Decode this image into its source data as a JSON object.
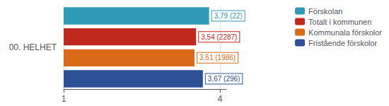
{
  "chart_data": {
    "type": "bar",
    "orientation": "horizontal",
    "ylabel": "00. HELHET",
    "categories": [
      null
    ],
    "series": [
      {
        "name": "Förskolan",
        "color": "#2e9ab5",
        "values": [
          3.79
        ],
        "value_labels": [
          "3,79 (22)"
        ]
      },
      {
        "name": "Totalt i kommunen",
        "color": "#c0281e",
        "values": [
          3.54
        ],
        "value_labels": [
          "3,54 (2287)"
        ]
      },
      {
        "name": "Kommunala förskolor",
        "color": "#d96b18",
        "values": [
          3.51
        ],
        "value_labels": [
          "3,51 (1986)"
        ]
      },
      {
        "name": "Fristående förskolor",
        "color": "#2e5096",
        "values": [
          3.67
        ],
        "value_labels": [
          "3,67 (296)"
        ]
      }
    ],
    "xlim": [
      1,
      4.12
    ],
    "xticks": [
      1,
      4
    ],
    "grid": true,
    "legend": "upper right",
    "data_labels": true,
    "tick_labels": "x"
  }
}
